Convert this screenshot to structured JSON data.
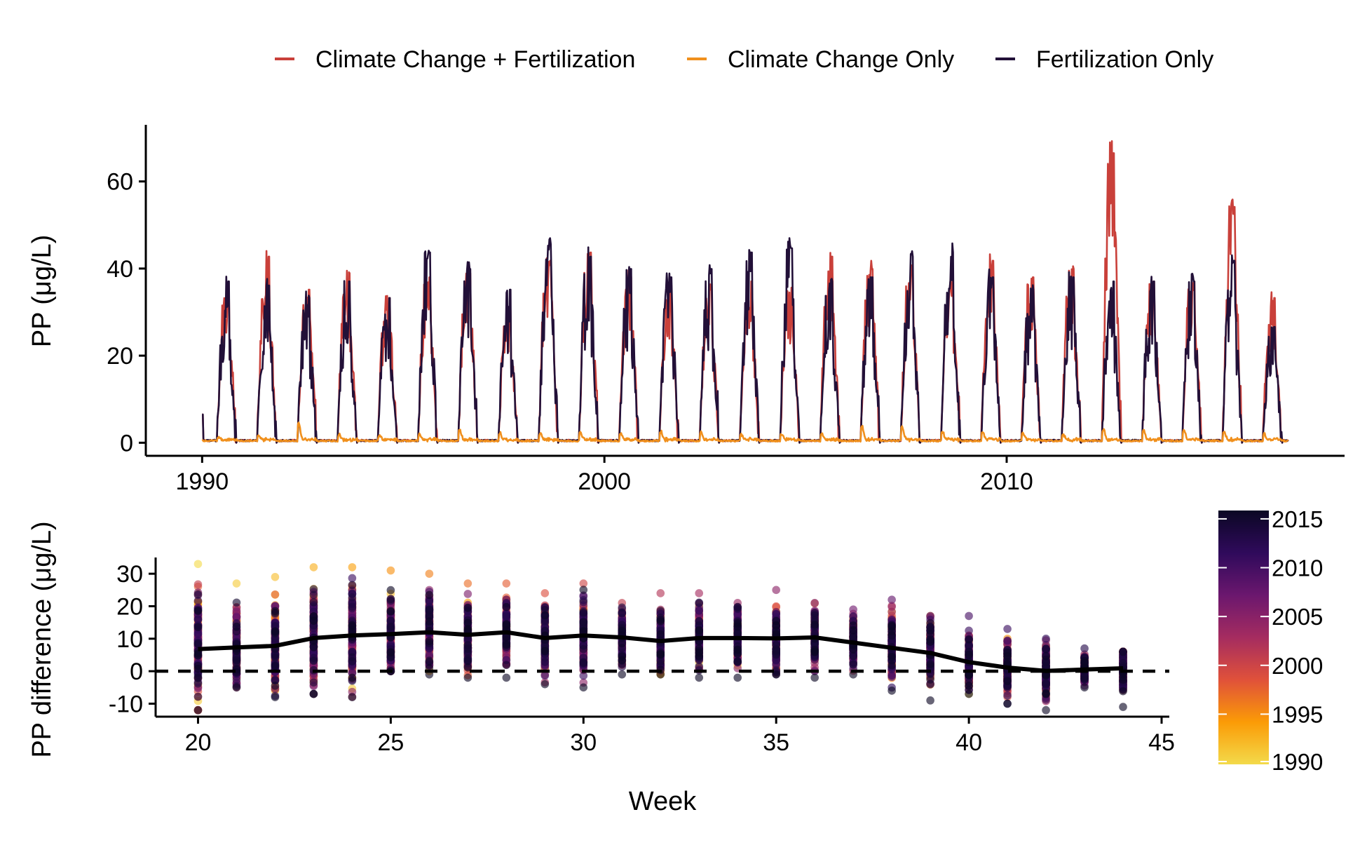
{
  "colors": {
    "cc_fert": "#c9403a",
    "cc_only": "#f0901d",
    "fert_only": "#221038",
    "axis": "#000000",
    "mean_line": "#000000"
  },
  "chart_data": [
    {
      "type": "line",
      "title": "",
      "xlabel": "",
      "ylabel": "PP (μg/L)",
      "xlim": [
        1988.6,
        2018.4
      ],
      "ylim": [
        -3,
        73
      ],
      "xticks": [
        1990,
        2000,
        2010
      ],
      "yticks": [
        0,
        20,
        40,
        60
      ],
      "grid": false,
      "legend": {
        "position": "top",
        "entries": [
          "Climate Change + Fertilization",
          "Climate Change Only",
          "Fertilization Only"
        ]
      },
      "x_range": [
        1990,
        2017
      ],
      "season": {
        "start_fraction": 0.38,
        "end_fraction": 0.85
      },
      "series": [
        {
          "name": "Climate Change + Fertilization",
          "color": "#c9403a",
          "annual_peaks": [
            37,
            45,
            37,
            41,
            35,
            40,
            41,
            32,
            44,
            46,
            40,
            38,
            37,
            39,
            36,
            45,
            42,
            42,
            39,
            44,
            40,
            42,
            70,
            39,
            39,
            57,
            35
          ]
        },
        {
          "name": "Climate Change Only",
          "color": "#f0901d",
          "annual_peaks": [
            0.5,
            1.1,
            3.8,
            1.2,
            1,
            1.2,
            2.5,
            1.5,
            1.5,
            1.8,
            1.4,
            1.7,
            1.6,
            1.2,
            1.2,
            1.5,
            3.2,
            2.8,
            1.8,
            1.9,
            1.5,
            1.2,
            2.4,
            2.3,
            2.2,
            1.8,
            1.4
          ]
        },
        {
          "name": "Fertilization Only",
          "color": "#221038",
          "annual_peaks": [
            39,
            38,
            35,
            39,
            35,
            46,
            42,
            37,
            48,
            45,
            42,
            40,
            42,
            46,
            47,
            39,
            40,
            45,
            46,
            40,
            37,
            40,
            39,
            39,
            39,
            44,
            28
          ]
        }
      ]
    },
    {
      "type": "scatter",
      "title": "",
      "xlabel": "Week",
      "ylabel": "PP difference (μg/L)",
      "xlim": [
        18.9,
        45.2
      ],
      "ylim": [
        -14,
        35
      ],
      "xticks": [
        20,
        25,
        30,
        35,
        40,
        45
      ],
      "yticks": [
        -10,
        0,
        10,
        20,
        30
      ],
      "grid": false,
      "reference_line": {
        "y": 0,
        "style": "dashed"
      },
      "colorbar": {
        "label": "",
        "range": [
          1990,
          2016
        ],
        "ticks": [
          1990,
          1995,
          2000,
          2005,
          2010,
          2015
        ],
        "stops": [
          "#f3da4b",
          "#fb9b06",
          "#e0513a",
          "#a52c60",
          "#6b176e",
          "#2f0a5b",
          "#0b0724"
        ]
      },
      "weeks": [
        20,
        21,
        22,
        23,
        24,
        25,
        26,
        27,
        28,
        29,
        30,
        31,
        32,
        33,
        34,
        35,
        36,
        37,
        38,
        39,
        40,
        41,
        42,
        43,
        44
      ],
      "mean_series": {
        "name": "",
        "color": "#000000",
        "values": [
          6.8,
          7.3,
          7.8,
          10.2,
          11,
          11.4,
          12,
          11.2,
          12,
          10.2,
          11,
          10.4,
          9.3,
          10.2,
          10.2,
          10.1,
          10.4,
          8.8,
          7.2,
          5.6,
          2.8,
          1.1,
          0.1,
          0.5,
          0.9
        ]
      },
      "point_min": [
        -12,
        -5,
        -8,
        -7,
        -8,
        0,
        -1,
        -2,
        -2,
        -4,
        -5,
        -1,
        -1,
        -2,
        -2,
        -1,
        -2,
        -1,
        -6,
        -9,
        -7,
        -10,
        -12,
        -5,
        -11
      ],
      "point_max": [
        33,
        27,
        29,
        32,
        32,
        31,
        30,
        27,
        27,
        24,
        27,
        21,
        24,
        24,
        21,
        25,
        21,
        19,
        22,
        17,
        17,
        13,
        10,
        7,
        6
      ]
    }
  ]
}
